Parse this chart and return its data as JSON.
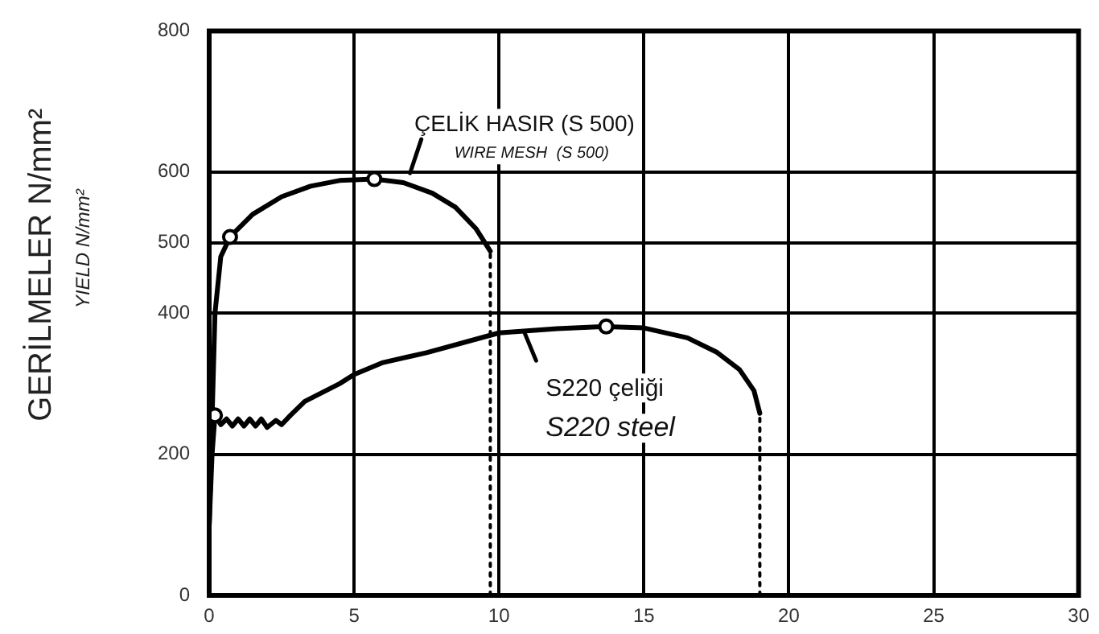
{
  "chart_data": {
    "type": "line",
    "ylabel": "GERİLMELER N/mm²",
    "xlim": [
      0,
      30
    ],
    "xticks": [
      0,
      5,
      10,
      15,
      20,
      25,
      30
    ],
    "ylim": [
      0,
      800
    ],
    "yticks": [
      0,
      200,
      400,
      500,
      600,
      800
    ],
    "grid": true,
    "legend": false,
    "marker": "none",
    "line_style": "solid",
    "series": [
      {
        "color": "#000000",
        "x": [
          0,
          0.1,
          0.2,
          0.4,
          0.72,
          1.5,
          2.5,
          3.5,
          4.5,
          5.7,
          6.7,
          7.7,
          8.5,
          9.2,
          9.7
        ],
        "values": [
          98,
          250,
          400,
          480,
          508,
          540,
          565,
          580,
          588,
          590,
          585,
          570,
          550,
          520,
          488
        ]
      },
      {
        "color": "#000000",
        "x": [
          0,
          0.1,
          0.2,
          0.4,
          0.6,
          0.8,
          1.0,
          1.2,
          1.4,
          1.6,
          1.8,
          2.0,
          2.3,
          2.5,
          2.8,
          3.3,
          4.5,
          5,
          6,
          7.5,
          10,
          12,
          13.7,
          15,
          16.5,
          17.5,
          18.3,
          18.8,
          19
        ],
        "values": [
          98,
          200,
          255,
          242,
          250,
          240,
          250,
          240,
          250,
          240,
          250,
          238,
          248,
          242,
          255,
          275,
          300,
          313,
          330,
          344,
          372,
          378,
          381,
          379,
          365,
          345,
          320,
          290,
          258
        ]
      },
      {
        "type": "scatter",
        "marker": "circle",
        "color": "#000000",
        "x": [
          0.72,
          5.7,
          0.2,
          13.7
        ],
        "values": [
          508,
          590,
          255,
          381
        ]
      },
      {
        "color": "#000000",
        "line_style": "dotted",
        "x": [
          9.7,
          9.7
        ],
        "values": [
          0,
          488
        ]
      },
      {
        "color": "#000000",
        "line_style": "dotted",
        "x": [
          19,
          19
        ],
        "values": [
          0,
          258
        ]
      }
    ],
    "annotations": [
      "ÇELİK HASIR (S 500)",
      "WIRE MESH  (S 500)",
      "S220 çeliği",
      "S220 steel",
      "YIELD N/mm²"
    ]
  }
}
